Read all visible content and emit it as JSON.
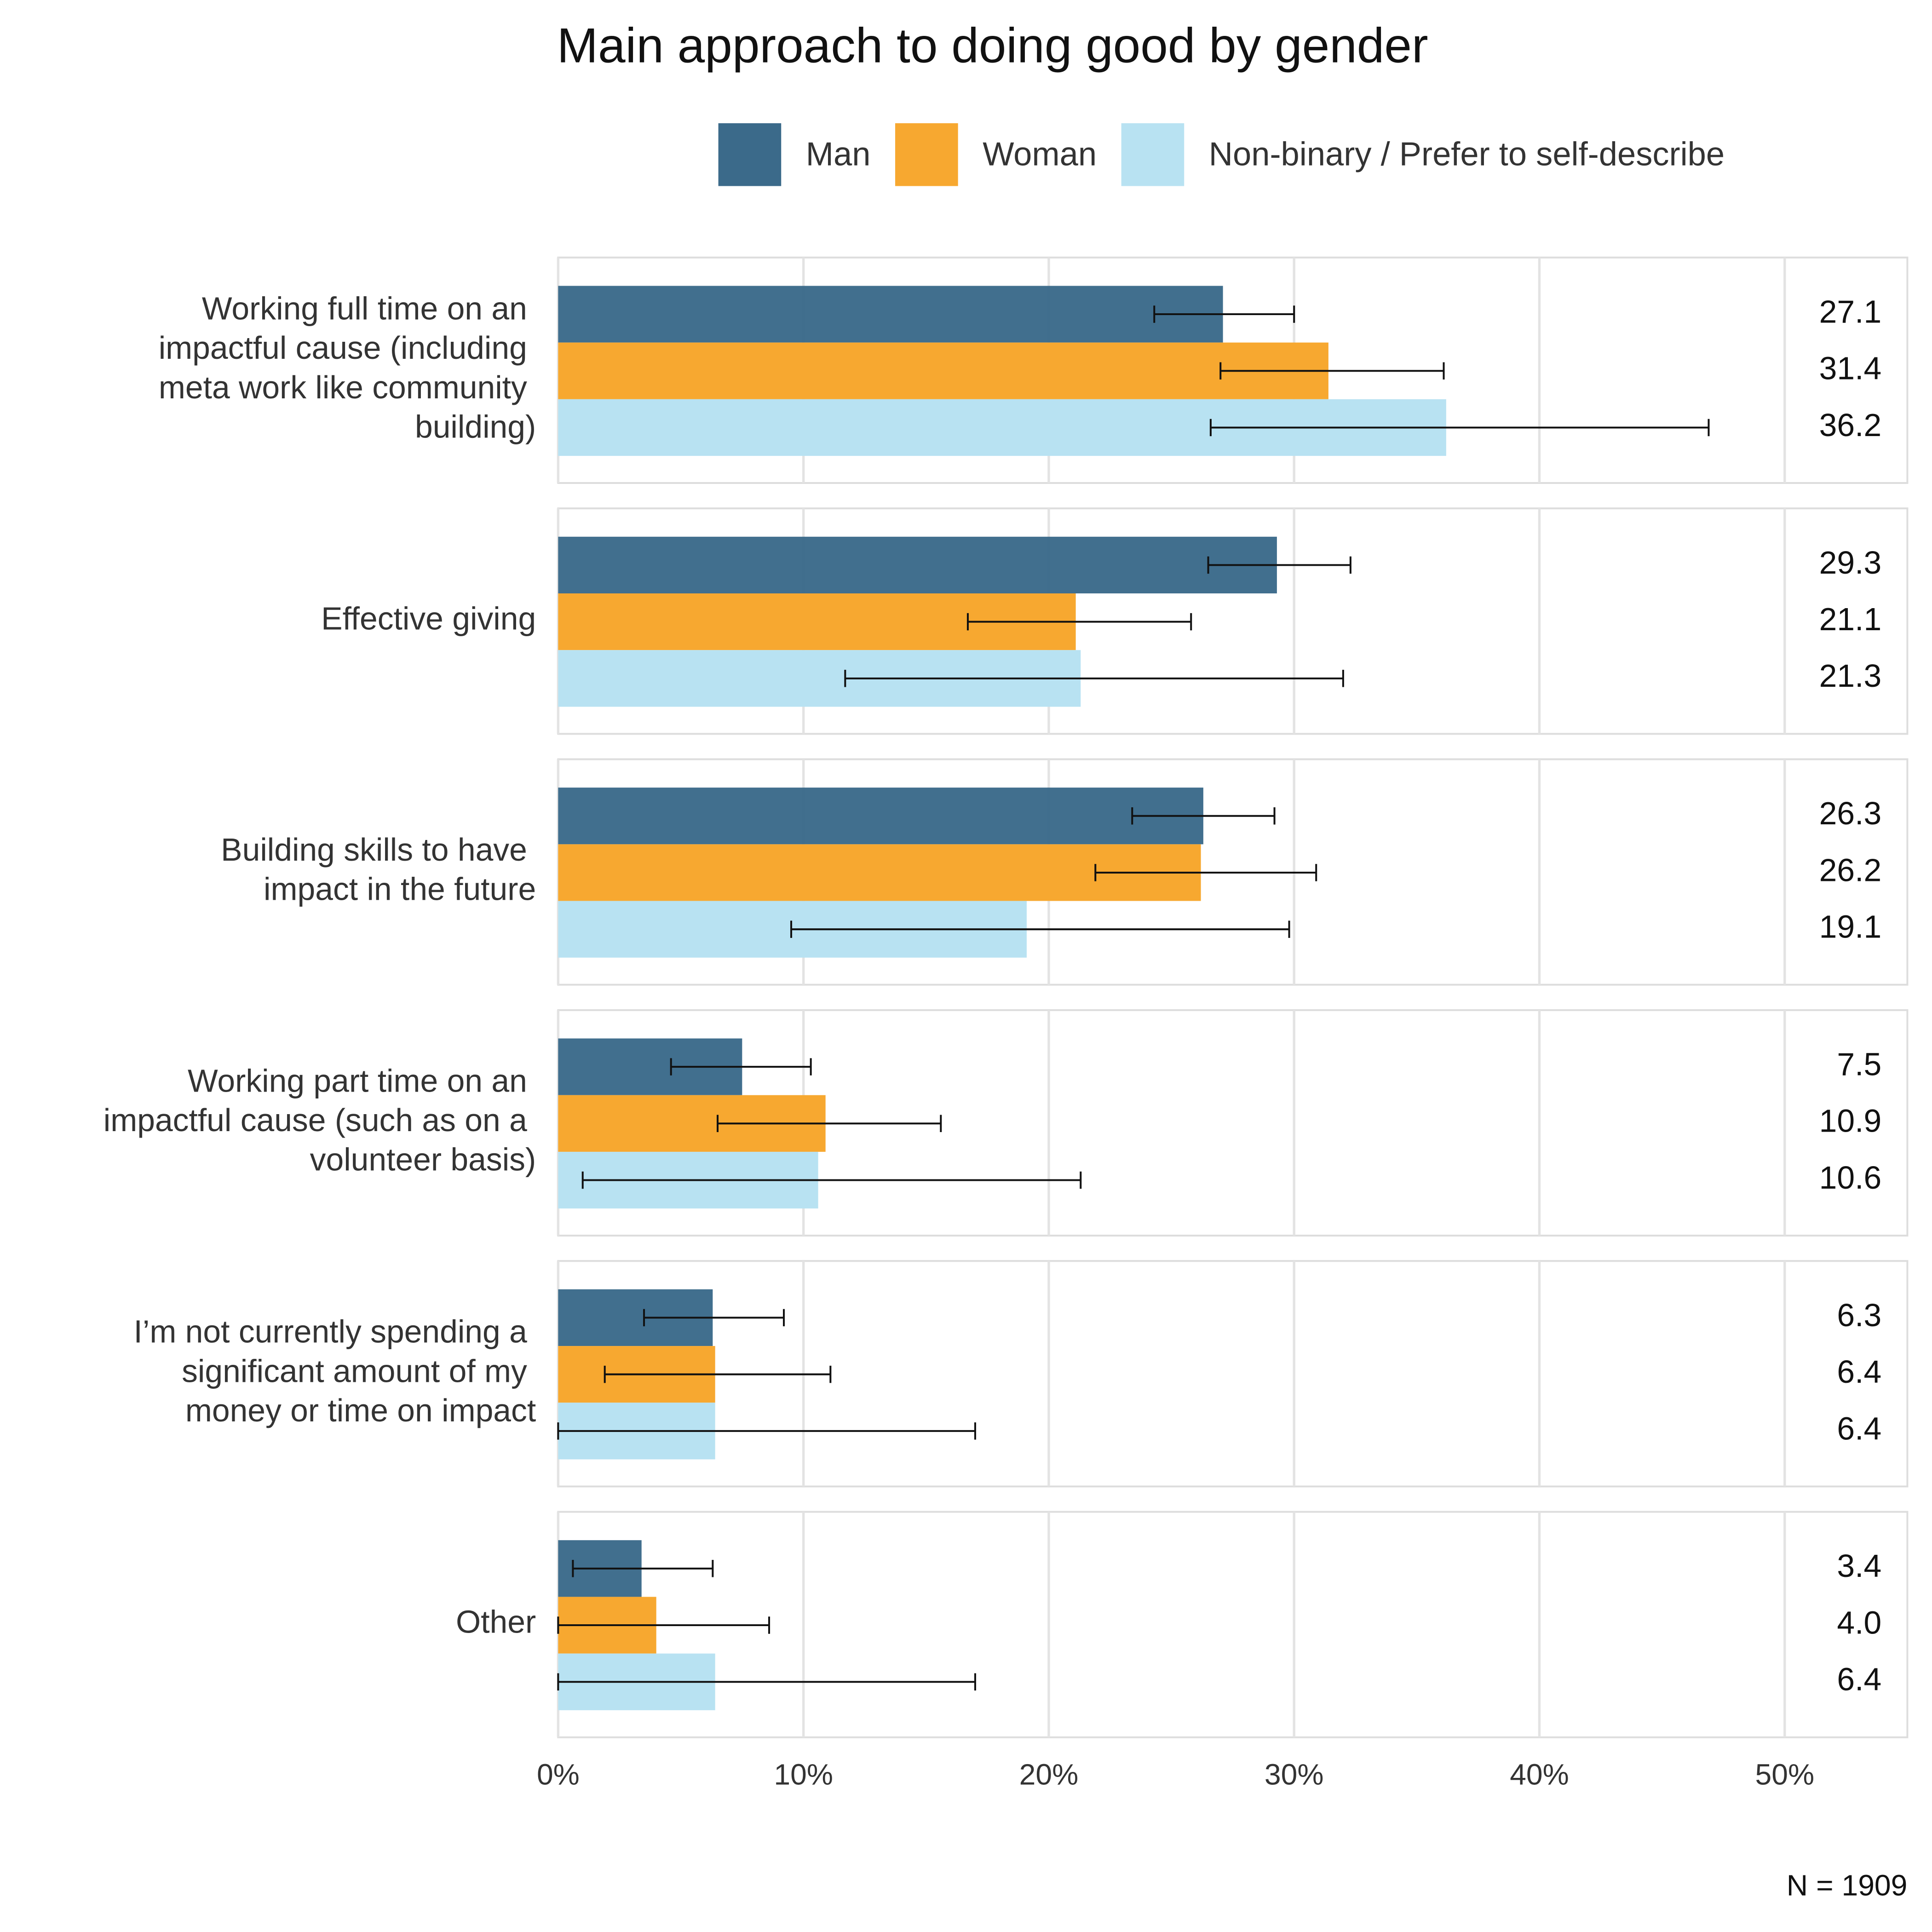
{
  "chart_data": {
    "type": "bar",
    "orientation": "horizontal",
    "title": "Main approach to doing good by gender",
    "categories": [
      "Working full time on an impactful cause (including meta work like community building)",
      "Effective giving",
      "Building skills to have impact in the future",
      "Working part time on an impactful cause (such as on a volunteer basis)",
      "I’m not currently spending a significant amount of my money or time on impact",
      "Other"
    ],
    "series": [
      {
        "name": "Man",
        "color": "#3b6a8a",
        "values": [
          27.1,
          29.3,
          26.3,
          7.5,
          6.3,
          3.4
        ],
        "lower": [
          24.3,
          26.5,
          23.4,
          4.6,
          3.5,
          0.6
        ],
        "upper": [
          30.0,
          32.3,
          29.2,
          10.3,
          9.2,
          6.3
        ]
      },
      {
        "name": "Woman",
        "color": "#f7a830",
        "values": [
          31.4,
          21.1,
          26.2,
          10.9,
          6.4,
          4.0
        ],
        "value_labels": [
          "31.4",
          "21.1",
          "26.2",
          "10.9",
          "6.4",
          "4.0"
        ],
        "lower": [
          27.0,
          16.7,
          21.9,
          6.5,
          1.9,
          0
        ],
        "upper": [
          36.1,
          25.8,
          30.9,
          15.6,
          11.1,
          8.6
        ]
      },
      {
        "name": "Non-binary / Prefer to self-describe",
        "color": "#b8e2f2",
        "values": [
          36.2,
          21.3,
          19.1,
          10.6,
          6.4,
          6.4
        ],
        "lower": [
          26.6,
          11.7,
          9.5,
          1.0,
          0,
          0
        ],
        "upper": [
          46.9,
          32.0,
          29.8,
          21.3,
          17.0,
          17.0
        ]
      }
    ],
    "xlim": [
      0,
      55
    ],
    "xticks": [
      {
        "value": 0,
        "label": "0%"
      },
      {
        "value": 10,
        "label": "10%"
      },
      {
        "value": 20,
        "label": "20%"
      },
      {
        "value": 30,
        "label": "30%"
      },
      {
        "value": 40,
        "label": "40%"
      },
      {
        "value": 50,
        "label": "50%"
      }
    ],
    "grid": true,
    "legend": "top",
    "note": "N = 1909"
  }
}
